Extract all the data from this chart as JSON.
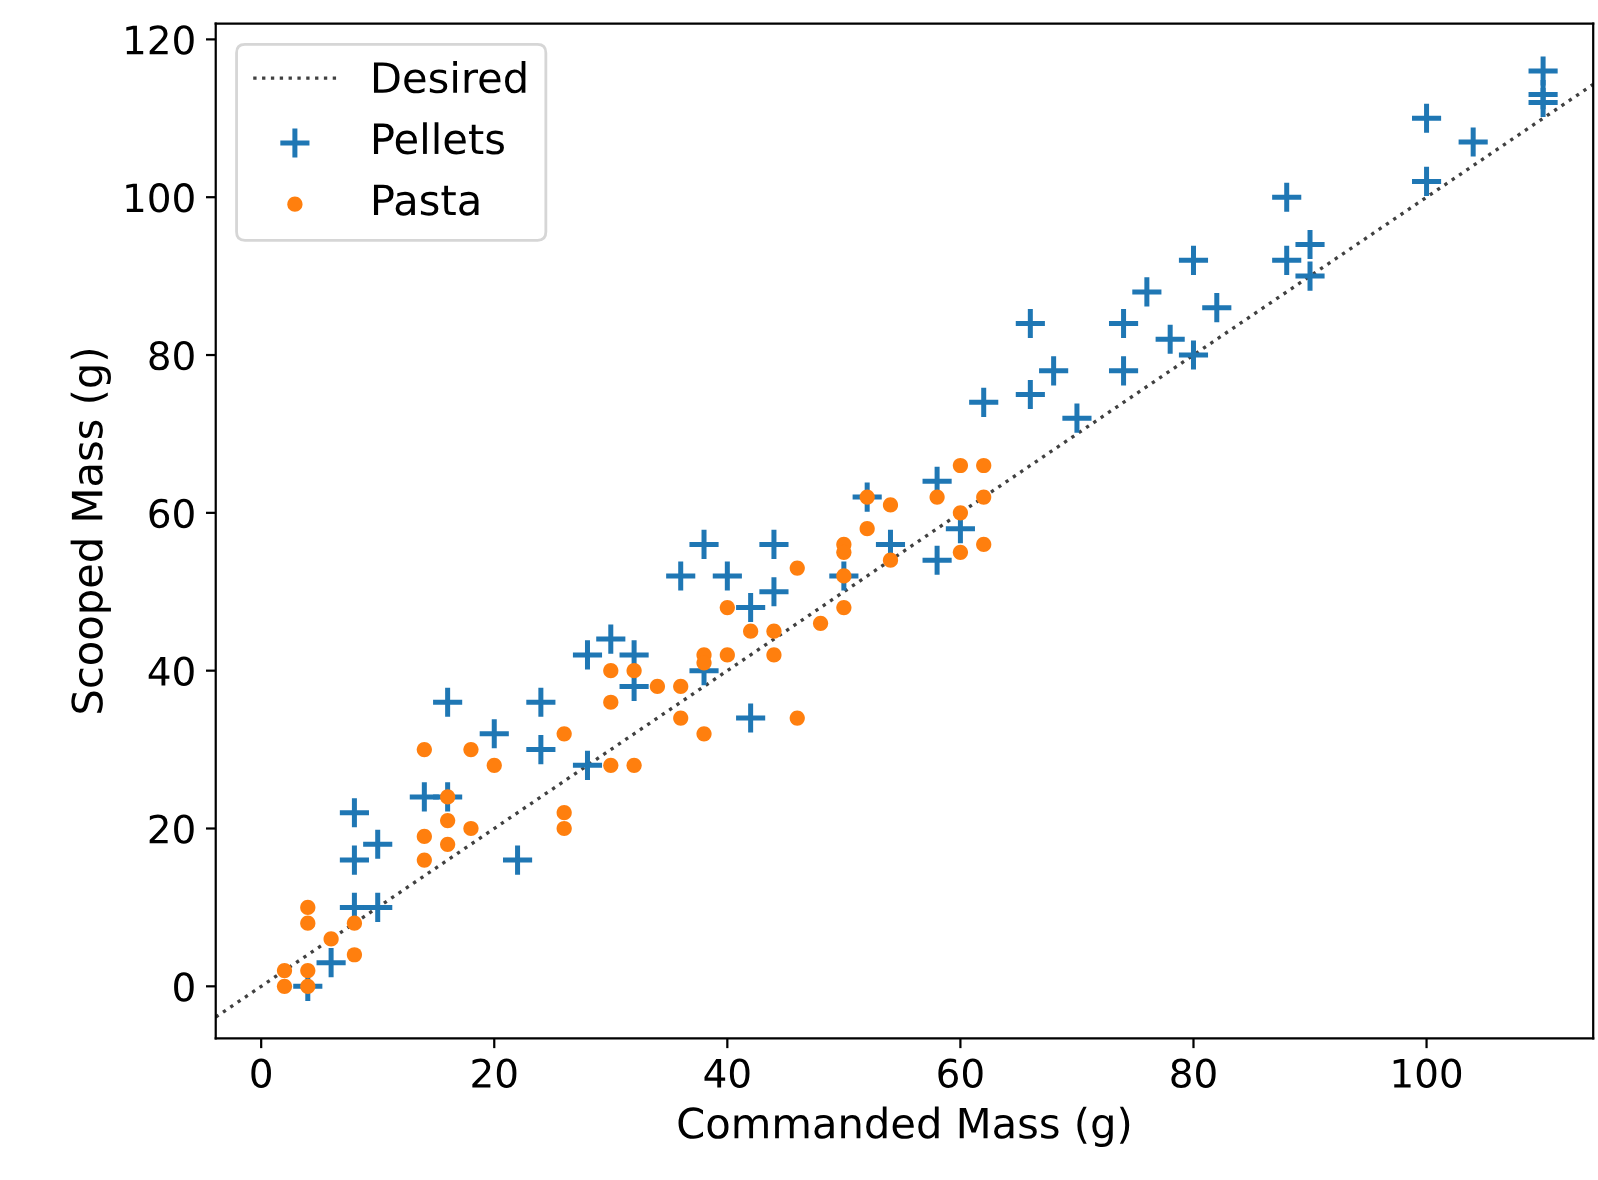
{
  "chart_data": {
    "type": "scatter",
    "xlabel": "Commanded Mass (g)",
    "ylabel": "Scooped Mass (g)",
    "xlim": [
      -3.9,
      114.3
    ],
    "ylim": [
      -6.6,
      122
    ],
    "xticks": [
      0,
      20,
      40,
      60,
      80,
      100
    ],
    "yticks": [
      0,
      20,
      40,
      60,
      80,
      100,
      120
    ],
    "grid": false,
    "legend": "top left",
    "series": [
      {
        "name": "Desired",
        "type": "line",
        "color": "#404040",
        "line_style": "dotted",
        "marker": "none",
        "x": [
          -3.9,
          114.3
        ],
        "values": [
          -3.9,
          114.3
        ]
      },
      {
        "name": "Pellets",
        "color": "#1f77b4",
        "marker": "cross",
        "x": [
          4,
          6,
          8,
          10,
          8,
          10,
          8,
          16,
          14,
          16,
          20,
          22,
          24,
          24,
          28,
          28,
          30,
          32,
          32,
          38,
          36,
          40,
          42,
          44,
          44,
          38,
          42,
          52,
          50,
          54,
          58,
          58,
          60,
          62,
          66,
          66,
          68,
          70,
          74,
          74,
          76,
          78,
          80,
          82,
          80,
          88,
          88,
          90,
          90,
          100,
          100,
          104,
          110,
          110,
          110
        ],
        "values": [
          0,
          3,
          10,
          10,
          16,
          18,
          22,
          36,
          24,
          24,
          32,
          16,
          30,
          36,
          28,
          42,
          44,
          42,
          38,
          56,
          52,
          52,
          48,
          50,
          56,
          40,
          34,
          62,
          52,
          56,
          64,
          54,
          58,
          74,
          84,
          75,
          78,
          72,
          84,
          78,
          88,
          82,
          80,
          86,
          92,
          100,
          92,
          94,
          90,
          110,
          102,
          107,
          116,
          113,
          112
        ]
      },
      {
        "name": "Pasta",
        "color": "#ff7f0e",
        "marker": "circle",
        "x": [
          2,
          2,
          4,
          4,
          4,
          4,
          6,
          8,
          8,
          14,
          14,
          14,
          16,
          16,
          16,
          18,
          18,
          20,
          26,
          26,
          26,
          30,
          30,
          30,
          32,
          32,
          34,
          36,
          36,
          38,
          38,
          38,
          40,
          40,
          42,
          44,
          44,
          46,
          46,
          48,
          50,
          50,
          50,
          50,
          52,
          52,
          54,
          54,
          58,
          60,
          62,
          62,
          60,
          60,
          62
        ],
        "values": [
          2,
          0,
          2,
          0,
          10,
          8,
          6,
          8,
          4,
          30,
          19,
          16,
          24,
          21,
          18,
          30,
          20,
          28,
          32,
          22,
          20,
          40,
          36,
          28,
          40,
          28,
          38,
          38,
          34,
          32,
          42,
          41,
          42,
          48,
          45,
          45,
          42,
          53,
          34,
          46,
          56,
          55,
          52,
          48,
          62,
          58,
          61,
          54,
          62,
          66,
          66,
          62,
          60,
          55,
          56
        ]
      }
    ]
  }
}
